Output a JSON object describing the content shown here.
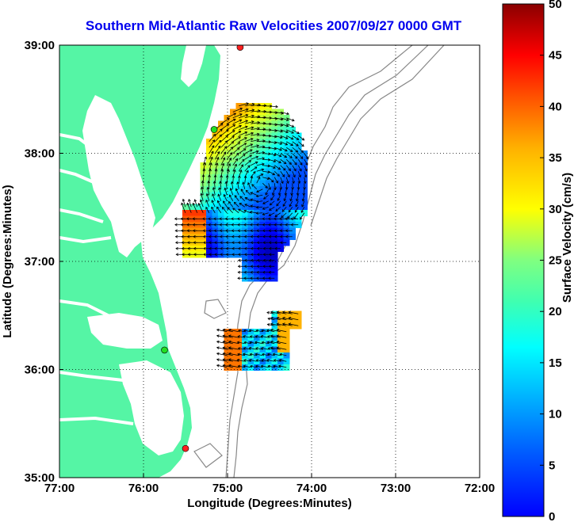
{
  "title": "Southern Mid-Atlantic Raw Velocities 2007/09/27 0000 GMT",
  "xlabel": "Longitude (Degrees:Minutes)",
  "ylabel": "Latitude (Degrees:Minutes)",
  "colorbar_label": "Surface Velocity (cm/s)",
  "x_ticks": [
    {
      "lon": -77,
      "label": "77:00"
    },
    {
      "lon": -76,
      "label": "76:00"
    },
    {
      "lon": -75,
      "label": "75:00"
    },
    {
      "lon": -74,
      "label": "74:00"
    },
    {
      "lon": -73,
      "label": "73:00"
    },
    {
      "lon": -72,
      "label": "72:00"
    }
  ],
  "y_ticks": [
    {
      "lat": 35,
      "label": "35:00"
    },
    {
      "lat": 36,
      "label": "36:00"
    },
    {
      "lat": 37,
      "label": "37:00"
    },
    {
      "lat": 38,
      "label": "38:00"
    },
    {
      "lat": 39,
      "label": "39:00"
    }
  ],
  "colorbar_ticks": [
    {
      "v": 0,
      "label": "0"
    },
    {
      "v": 5,
      "label": "5"
    },
    {
      "v": 10,
      "label": "10"
    },
    {
      "v": 15,
      "label": "15"
    },
    {
      "v": 20,
      "label": "20"
    },
    {
      "v": 25,
      "label": "25"
    },
    {
      "v": 30,
      "label": "30"
    },
    {
      "v": 35,
      "label": "35"
    },
    {
      "v": 40,
      "label": "40"
    },
    {
      "v": 45,
      "label": "45"
    },
    {
      "v": 50,
      "label": "50"
    }
  ],
  "colors": {
    "title": "#0000ee",
    "land": "#55f5a5",
    "ocean": "#ffffff",
    "isobath": "#888888",
    "arrow": "#000000",
    "grid": "#000000"
  },
  "stations": [
    {
      "lon": -74.85,
      "lat": 38.98,
      "color": "#ff2020"
    },
    {
      "lon": -75.16,
      "lat": 38.22,
      "color": "#22dd22"
    },
    {
      "lon": -75.75,
      "lat": 36.18,
      "color": "#22dd22"
    },
    {
      "lon": -75.5,
      "lat": 35.27,
      "color": "#ff2020"
    }
  ],
  "chart_data": {
    "type": "heatmap",
    "title": "Southern Mid-Atlantic Raw Velocities 2007/09/27 0000 GMT",
    "xlabel": "Longitude (Degrees:Minutes)",
    "ylabel": "Latitude (Degrees:Minutes)",
    "xlim": [
      -77,
      -72
    ],
    "ylim": [
      35,
      39
    ],
    "colorbar": {
      "label": "Surface Velocity (cm/s)",
      "range": [
        0,
        50
      ],
      "colormap": "jet"
    },
    "grid": true,
    "velocity_regions": [
      {
        "name": "north",
        "lon_range": [
          -75.5,
          -74.1
        ],
        "lat_range": [
          36.8,
          38.6
        ],
        "speed_range_cm_s": [
          5,
          45
        ]
      },
      {
        "name": "south",
        "lon_range": [
          -75.0,
          -74.2
        ],
        "lat_range": [
          36.0,
          36.6
        ],
        "speed_range_cm_s": [
          8,
          45
        ]
      }
    ]
  }
}
